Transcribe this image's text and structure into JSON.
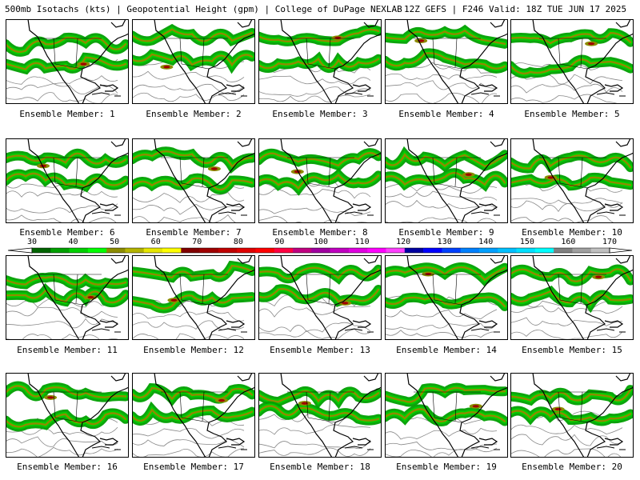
{
  "header": {
    "left": "500mb Isotachs (kts) | Geopotential Height (gpm) | College of DuPage NEXLAB",
    "right": "12Z GEFS | F246 Valid: 18Z TUE JUN 17 2025"
  },
  "member_label_prefix": "Ensemble Member:",
  "members": [
    "1",
    "2",
    "3",
    "4",
    "5",
    "6",
    "7",
    "8",
    "9",
    "10",
    "11",
    "12",
    "13",
    "14",
    "15",
    "16",
    "17",
    "18",
    "19",
    "20"
  ],
  "colorbar": {
    "labels": [
      "30",
      "40",
      "50",
      "60",
      "70",
      "80",
      "90",
      "100",
      "110",
      "120",
      "130",
      "140",
      "150",
      "160",
      "170"
    ],
    "colors": [
      "#006400",
      "#00a000",
      "#00d000",
      "#00ff00",
      "#8c8c00",
      "#b4b400",
      "#e6e600",
      "#ffff00",
      "#800000",
      "#a00000",
      "#c00000",
      "#e00000",
      "#ff0000",
      "#ff0040",
      "#c00080",
      "#a000a0",
      "#c000c0",
      "#e000e0",
      "#ff00ff",
      "#ff40ff",
      "#0000a0",
      "#0000ff",
      "#0040ff",
      "#0080ff",
      "#00a0ff",
      "#00c0ff",
      "#00e0ff",
      "#00ffff",
      "#808080",
      "#a0a0a0",
      "#c0c0c0"
    ]
  },
  "colors": {
    "jet_outer": "#00a000",
    "jet_mid": "#00d000",
    "jet_core": "#8c8c00",
    "jet_max": "#a00000",
    "coast": "#000000",
    "height_contour": "#888888"
  }
}
